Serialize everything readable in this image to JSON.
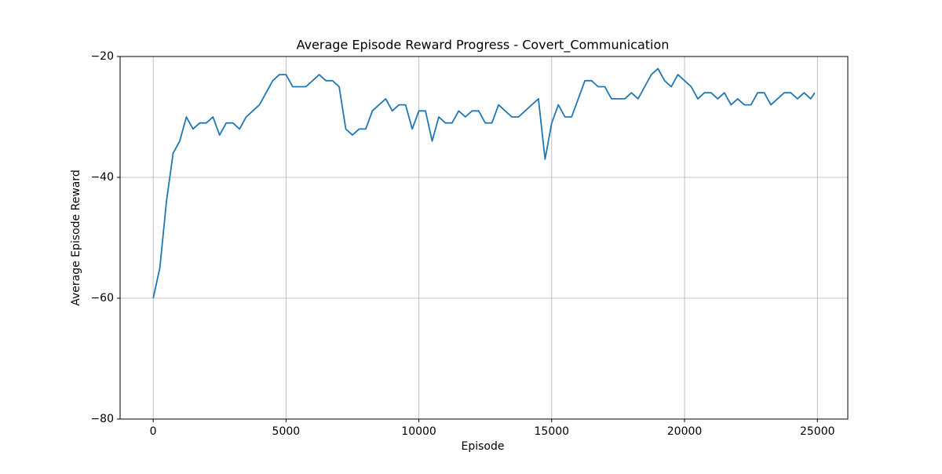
{
  "chart_data": {
    "type": "line",
    "title": "Average Episode Reward Progress - Covert_Communication",
    "x_label": "Episode",
    "y_label": "Average Episode Reward",
    "xlim": [
      -1245,
      26145
    ],
    "ylim": [
      -80,
      -20
    ],
    "xticks": [
      0,
      5000,
      10000,
      15000,
      20000,
      25000
    ],
    "yticks": [
      {
        "value": -80,
        "label": "−80"
      },
      {
        "value": -60,
        "label": "−60"
      },
      {
        "value": -40,
        "label": "−40"
      },
      {
        "value": -20,
        "label": "−20"
      }
    ],
    "grid": true,
    "x": [
      0,
      250,
      500,
      750,
      1000,
      1250,
      1500,
      1750,
      2000,
      2250,
      2500,
      2750,
      3000,
      3250,
      3500,
      3750,
      4000,
      4250,
      4500,
      4750,
      5000,
      5250,
      5500,
      5750,
      6000,
      6250,
      6500,
      6750,
      7000,
      7250,
      7500,
      7750,
      8000,
      8250,
      8500,
      8750,
      9000,
      9250,
      9500,
      9750,
      10000,
      10250,
      10500,
      10750,
      11000,
      11250,
      11500,
      11750,
      12000,
      12250,
      12500,
      12750,
      13000,
      13250,
      13500,
      13750,
      14000,
      14250,
      14500,
      14750,
      15000,
      15250,
      15500,
      15750,
      16000,
      16250,
      16500,
      16750,
      17000,
      17250,
      17500,
      17750,
      18000,
      18250,
      18500,
      18750,
      19000,
      19250,
      19500,
      19750,
      20000,
      20250,
      20500,
      20750,
      21000,
      21250,
      21500,
      21750,
      22000,
      22250,
      22500,
      22750,
      23000,
      23250,
      23500,
      23750,
      24000,
      24250,
      24500,
      24750,
      24900
    ],
    "series": [
      {
        "name": "Average Episode Reward",
        "color": "#1f77b4",
        "values": [
          -60,
          -55,
          -44,
          -36,
          -34,
          -30,
          -32,
          -31,
          -31,
          -30,
          -33,
          -31,
          -31,
          -32,
          -30,
          -29,
          -28,
          -26,
          -24,
          -23,
          -23,
          -25,
          -25,
          -25,
          -24,
          -23,
          -24,
          -24,
          -25,
          -32,
          -33,
          -32,
          -32,
          -29,
          -28,
          -27,
          -29,
          -28,
          -28,
          -32,
          -29,
          -29,
          -34,
          -30,
          -31,
          -31,
          -29,
          -30,
          -29,
          -29,
          -31,
          -31,
          -28,
          -29,
          -30,
          -30,
          -29,
          -28,
          -27,
          -37,
          -31,
          -28,
          -30,
          -30,
          -27,
          -24,
          -24,
          -25,
          -25,
          -27,
          -27,
          -27,
          -26,
          -27,
          -25,
          -23,
          -22,
          -24,
          -25,
          -23,
          -24,
          -25,
          -27,
          -26,
          -26,
          -27,
          -26,
          -28,
          -27,
          -28,
          -28,
          -26,
          -26,
          -28,
          -27,
          -26,
          -26,
          -27,
          -26,
          -27,
          -26
        ]
      }
    ]
  }
}
